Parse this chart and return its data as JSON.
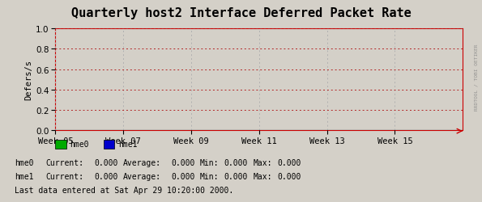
{
  "title": "Quarterly host2 Interface Deferred Packet Rate",
  "ylabel": "Defers/s",
  "yticks": [
    0.0,
    0.2,
    0.4,
    0.6,
    0.8,
    1.0
  ],
  "ylim": [
    0.0,
    1.0
  ],
  "xtick_labels": [
    "Week 05",
    "Week 07",
    "Week 09",
    "Week 11",
    "Week 13",
    "Week 15"
  ],
  "bg_color": "#d4d0c8",
  "plot_bg_color": "#d4d0c8",
  "grid_color_red": "#b22222",
  "grid_color_gray": "#b0b0b0",
  "line_color_hme0": "#00cc00",
  "line_color_hme1": "#0000cc",
  "axis_line_color": "#cc0000",
  "legend": [
    "hme0",
    "hme1"
  ],
  "legend_colors": [
    "#00aa00",
    "#0000cc"
  ],
  "stats": [
    {
      "name": "hme0",
      "current": "0.000",
      "average": "0.000",
      "min": "0.000",
      "max": "0.000"
    },
    {
      "name": "hme1",
      "current": "0.000",
      "average": "0.000",
      "min": "0.000",
      "max": "0.000"
    }
  ],
  "footer": "Last data entered at Sat Apr 29 10:20:00 2000.",
  "watermark": "RRDTOOL / TOBI OETIKER",
  "title_fontsize": 11,
  "label_fontsize": 7.5,
  "tick_fontsize": 7.5,
  "mono_fontsize": 7.0,
  "stats_fontsize": 7.0
}
